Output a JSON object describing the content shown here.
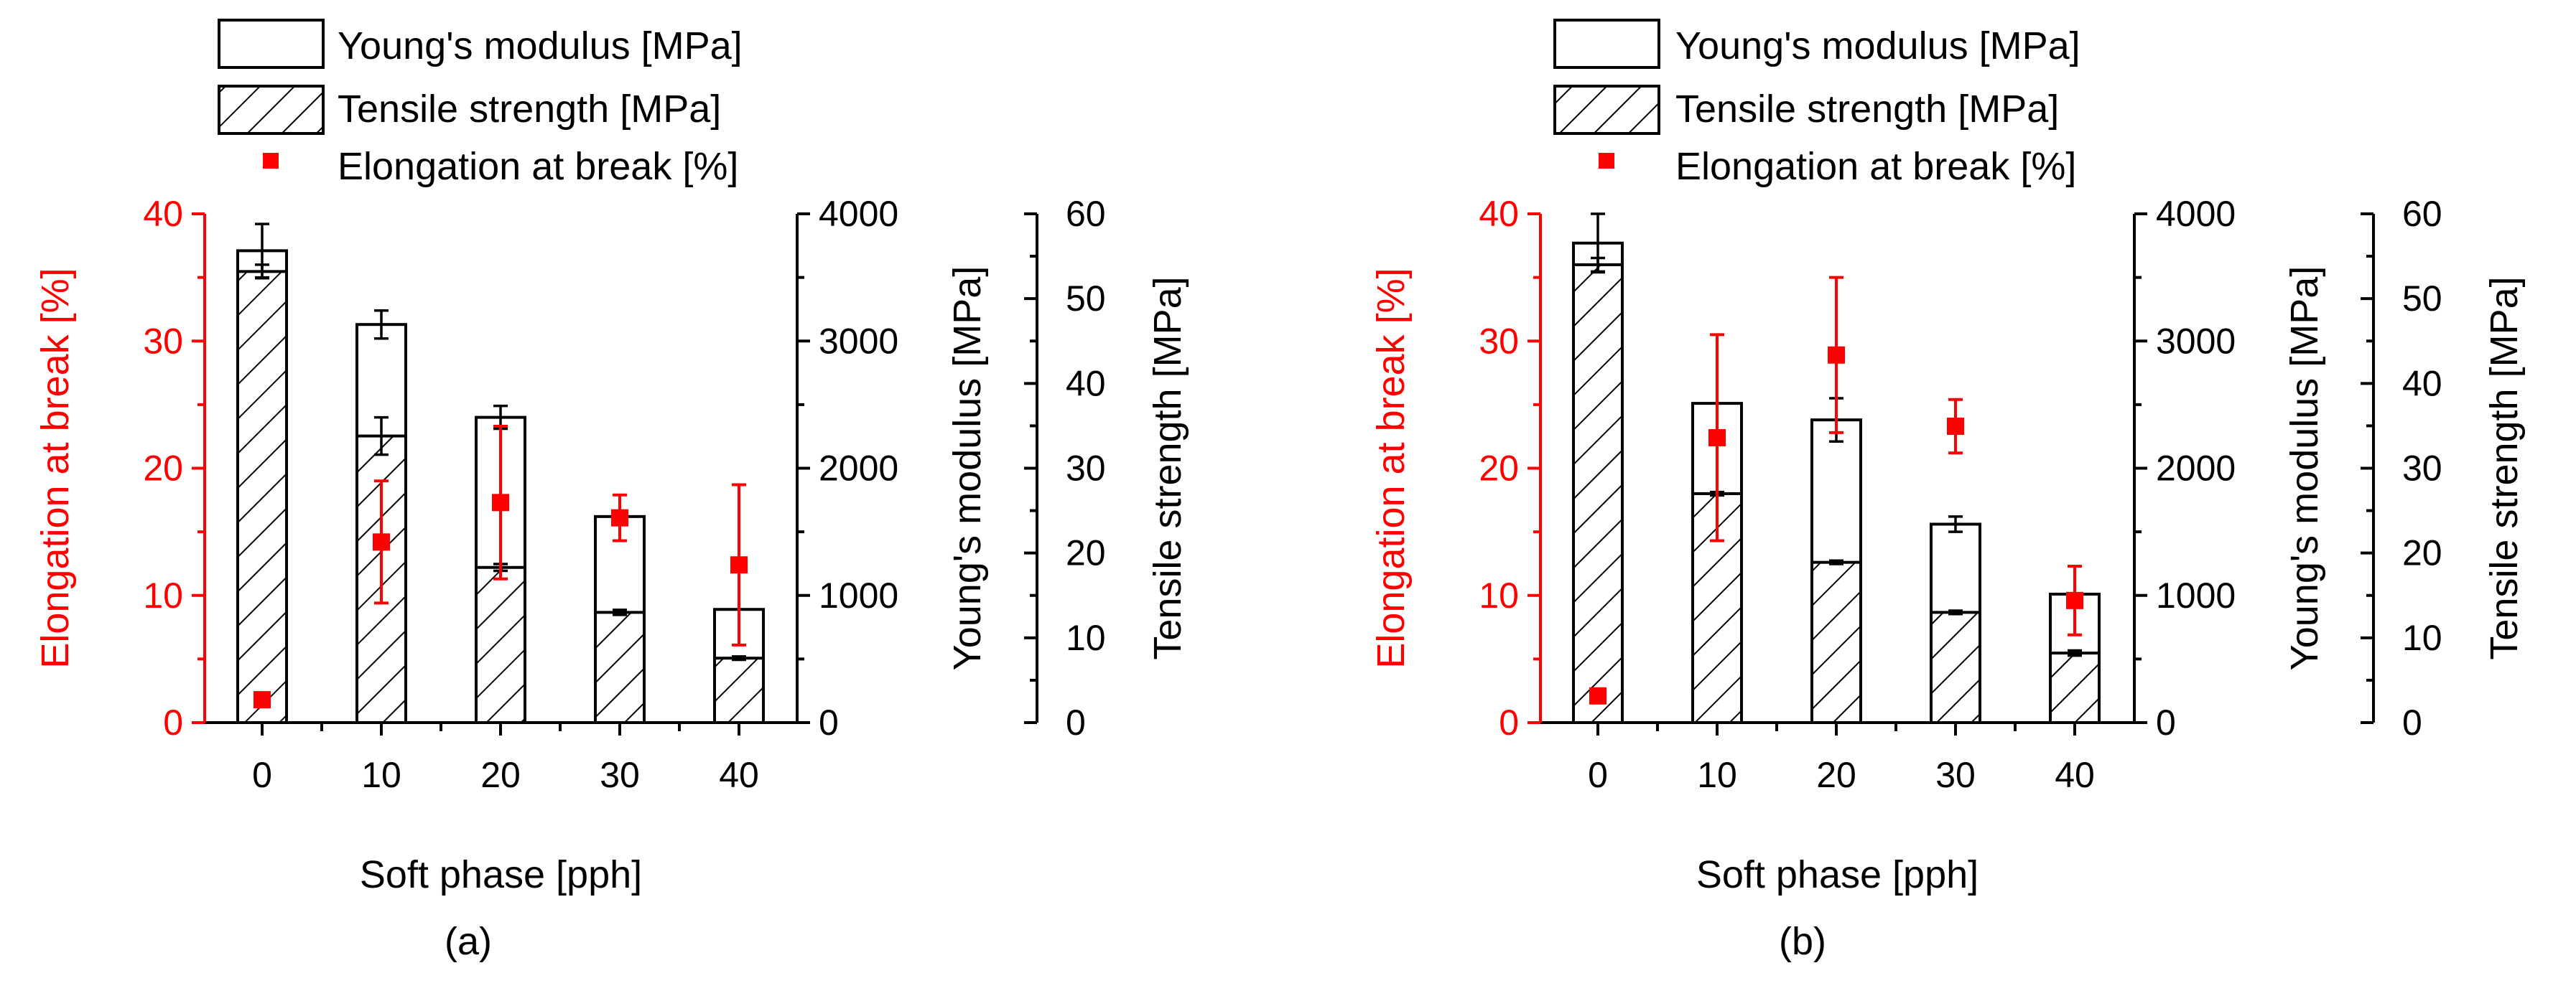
{
  "legend": {
    "youngs": "Young's modulus [MPa]",
    "tensile": "Tensile strength [MPa]",
    "elongation": "Elongation at break [%]"
  },
  "colors": {
    "elongation": "#ff0000",
    "axis": "#000000"
  },
  "chart_data": [
    {
      "type": "bar",
      "panel_label": "(a)",
      "xlabel": "Soft phase [pph]",
      "categories": [
        "0",
        "10",
        "20",
        "30",
        "40"
      ],
      "series": [
        {
          "name": "Young's modulus [MPa]",
          "axis": "youngs",
          "values": [
            3710,
            3130,
            2400,
            1620,
            890
          ],
          "errors": [
            210,
            110,
            90,
            0,
            0
          ]
        },
        {
          "name": "Tensile strength [MPa]",
          "axis": "tensile",
          "values": [
            53.2,
            33.8,
            18.3,
            13,
            7.6
          ],
          "errors": [
            0.8,
            2.2,
            0.4,
            0.3,
            0.2
          ]
        },
        {
          "name": "Elongation at break [%]",
          "axis": "elongation",
          "values": [
            1.8,
            14.2,
            17.3,
            16.1,
            12.4
          ],
          "errors": [
            0.4,
            4.8,
            6,
            1.8,
            6.3
          ]
        }
      ],
      "axes": {
        "elongation": {
          "label": "Elongation at break [%]",
          "ylim": [
            0,
            40
          ],
          "ticks": [
            "0",
            "10",
            "20",
            "30",
            "40"
          ]
        },
        "youngs": {
          "label": "Young's modulus [MPa]",
          "ylim": [
            0,
            4000
          ],
          "ticks": [
            "0",
            "1000",
            "2000",
            "3000",
            "4000"
          ]
        },
        "tensile": {
          "label": "Tensile strength [MPa]",
          "ylim": [
            0,
            60
          ],
          "ticks": [
            "0",
            "10",
            "20",
            "30",
            "40",
            "50",
            "60"
          ]
        }
      }
    },
    {
      "type": "bar",
      "panel_label": "(b)",
      "xlabel": "Soft phase [pph]",
      "categories": [
        "0",
        "10",
        "20",
        "30",
        "40"
      ],
      "series": [
        {
          "name": "Young's modulus [MPa]",
          "axis": "youngs",
          "values": [
            3770,
            2510,
            2380,
            1560,
            1010
          ],
          "errors": [
            230,
            0,
            170,
            60,
            0
          ]
        },
        {
          "name": "Tensile strength [MPa]",
          "axis": "tensile",
          "values": [
            54,
            27,
            18.9,
            13,
            8.2
          ],
          "errors": [
            0.8,
            0.2,
            0.2,
            0.2,
            0.3
          ]
        },
        {
          "name": "Elongation at break [%]",
          "axis": "elongation",
          "values": [
            2.1,
            22.4,
            28.9,
            23.3,
            9.6
          ],
          "errors": [
            0.3,
            8.1,
            6.1,
            2.1,
            2.7
          ]
        }
      ],
      "axes": {
        "elongation": {
          "label": "Elongation at break [%]",
          "ylim": [
            0,
            40
          ],
          "ticks": [
            "0",
            "10",
            "20",
            "30",
            "40"
          ]
        },
        "youngs": {
          "label": "Young's modulus [MPa]",
          "ylim": [
            0,
            4000
          ],
          "ticks": [
            "0",
            "1000",
            "2000",
            "3000",
            "4000"
          ]
        },
        "tensile": {
          "label": "Tensile strength [MPa]",
          "ylim": [
            0,
            60
          ],
          "ticks": [
            "0",
            "10",
            "20",
            "30",
            "40",
            "50",
            "60"
          ]
        }
      }
    }
  ]
}
